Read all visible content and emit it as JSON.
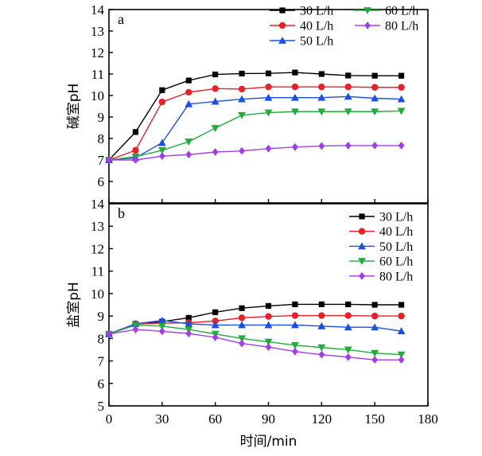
{
  "chart_data": [
    {
      "type": "line",
      "panel_label": "a",
      "ylabel": "碱室pH",
      "xlim": [
        0,
        180
      ],
      "ylim": [
        5,
        14
      ],
      "x_ticks": [
        0,
        30,
        60,
        90,
        120,
        150,
        180
      ],
      "y_ticks": [
        5,
        6,
        7,
        8,
        9,
        10,
        11,
        12,
        13,
        14
      ],
      "legend": "top-right, two columns",
      "x": [
        0,
        15,
        30,
        45,
        60,
        75,
        90,
        105,
        120,
        135,
        150,
        165
      ],
      "series": [
        {
          "name": "30 L/h",
          "color": "#000000",
          "marker": "square",
          "values": [
            7.0,
            8.3,
            10.25,
            10.7,
            10.98,
            11.02,
            11.03,
            11.07,
            11.0,
            10.93,
            10.92,
            10.92
          ]
        },
        {
          "name": "40 L/h",
          "color": "#e8202a",
          "marker": "circle",
          "values": [
            7.0,
            7.45,
            9.7,
            10.15,
            10.32,
            10.3,
            10.4,
            10.4,
            10.4,
            10.4,
            10.38,
            10.38
          ]
        },
        {
          "name": "50 L/h",
          "color": "#1a4ee6",
          "marker": "triangle-up",
          "values": [
            7.0,
            7.1,
            7.8,
            9.6,
            9.72,
            9.83,
            9.9,
            9.9,
            9.9,
            9.95,
            9.87,
            9.83
          ]
        },
        {
          "name": "60 L/h",
          "color": "#22aa3c",
          "marker": "triangle-down",
          "values": [
            7.0,
            7.15,
            7.45,
            7.85,
            8.48,
            9.08,
            9.2,
            9.25,
            9.25,
            9.25,
            9.25,
            9.28
          ]
        },
        {
          "name": "80 L/h",
          "color": "#a13ee8",
          "marker": "diamond",
          "values": [
            7.0,
            7.0,
            7.18,
            7.25,
            7.37,
            7.42,
            7.53,
            7.6,
            7.65,
            7.67,
            7.67,
            7.67
          ]
        }
      ]
    },
    {
      "type": "line",
      "panel_label": "b",
      "ylabel": "盐室pH",
      "xlabel": "时间/min",
      "xlim": [
        0,
        180
      ],
      "ylim": [
        5,
        14
      ],
      "x_ticks": [
        0,
        30,
        60,
        90,
        120,
        150,
        180
      ],
      "y_ticks": [
        5,
        6,
        7,
        8,
        9,
        10,
        11,
        12,
        13,
        14
      ],
      "legend": "top-right, single column",
      "x": [
        0,
        15,
        30,
        45,
        60,
        75,
        90,
        105,
        120,
        135,
        150,
        165
      ],
      "series": [
        {
          "name": "30 L/h",
          "color": "#000000",
          "marker": "square",
          "values": [
            8.2,
            8.65,
            8.75,
            8.92,
            9.17,
            9.35,
            9.45,
            9.52,
            9.52,
            9.52,
            9.5,
            9.5
          ]
        },
        {
          "name": "40 L/h",
          "color": "#e8202a",
          "marker": "circle",
          "values": [
            8.2,
            8.65,
            8.68,
            8.7,
            8.78,
            8.92,
            8.98,
            9.02,
            9.02,
            9.02,
            9.0,
            9.0
          ]
        },
        {
          "name": "50 L/h",
          "color": "#1a4ee6",
          "marker": "triangle-up",
          "values": [
            8.2,
            8.65,
            8.8,
            8.65,
            8.6,
            8.6,
            8.6,
            8.6,
            8.55,
            8.5,
            8.5,
            8.33
          ]
        },
        {
          "name": "60 L/h",
          "color": "#22aa3c",
          "marker": "triangle-down",
          "values": [
            8.2,
            8.6,
            8.55,
            8.4,
            8.2,
            8.0,
            7.85,
            7.7,
            7.6,
            7.5,
            7.35,
            7.28
          ]
        },
        {
          "name": "80 L/h",
          "color": "#a13ee8",
          "marker": "diamond",
          "values": [
            8.2,
            8.4,
            8.32,
            8.22,
            8.05,
            7.78,
            7.62,
            7.42,
            7.28,
            7.17,
            7.05,
            7.05
          ]
        }
      ]
    }
  ]
}
